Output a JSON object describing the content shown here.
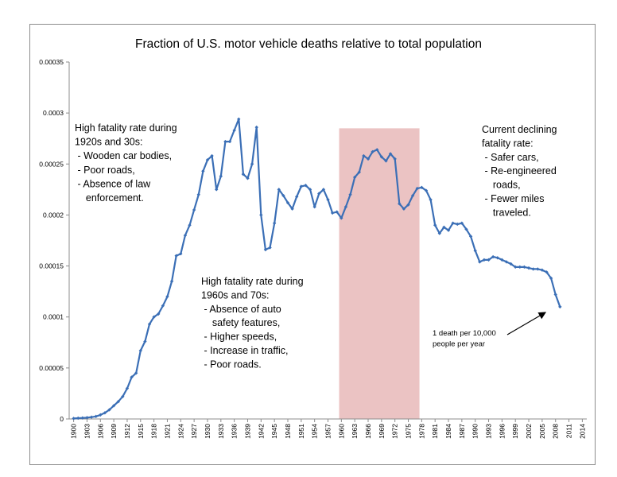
{
  "chart_data": {
    "type": "line",
    "title": "Fraction of U.S. motor vehicle deaths relative to total population",
    "xlabel": "",
    "ylabel": "",
    "xlim": [
      1899,
      2015
    ],
    "ylim": [
      0,
      0.00035
    ],
    "y_ticks": [
      "0",
      "0.00005",
      "0.0001",
      "0.00015",
      "0.0002",
      "0.00025",
      "0.0003",
      "0.00035"
    ],
    "x_ticks": [
      "1900",
      "1903",
      "1906",
      "1909",
      "1912",
      "1915",
      "1918",
      "1921",
      "1924",
      "1927",
      "1930",
      "1933",
      "1936",
      "1939",
      "1942",
      "1945",
      "1948",
      "1951",
      "1954",
      "1957",
      "1960",
      "1963",
      "1966",
      "1969",
      "1972",
      "1975",
      "1978",
      "1981",
      "1984",
      "1987",
      "1990",
      "1993",
      "1996",
      "1999",
      "2002",
      "2005",
      "2008",
      "2011",
      "2014"
    ],
    "grid": false,
    "legend": "none",
    "line_color": "#3b6fb6",
    "highlight": {
      "from": 1959.5,
      "to": 1977.5,
      "color": "#e8b8b8"
    },
    "series": [
      {
        "x": [
          1900,
          1901,
          1902,
          1903,
          1904,
          1905,
          1906,
          1907,
          1908,
          1909,
          1910,
          1911,
          1912,
          1913,
          1914,
          1915,
          1916,
          1917,
          1918,
          1919,
          1920,
          1921,
          1922,
          1923,
          1924,
          1925,
          1926,
          1927,
          1928,
          1929,
          1930,
          1931,
          1932,
          1933,
          1934,
          1935,
          1936,
          1937,
          1938,
          1939,
          1940,
          1941,
          1942,
          1943,
          1944,
          1945,
          1946,
          1947,
          1948,
          1949,
          1950,
          1951,
          1952,
          1953,
          1954,
          1955,
          1956,
          1957,
          1958,
          1959,
          1960,
          1961,
          1962,
          1963,
          1964,
          1965,
          1966,
          1967,
          1968,
          1969,
          1970,
          1971,
          1972,
          1973,
          1974,
          1975,
          1976,
          1977,
          1978,
          1979,
          1980,
          1981,
          1982,
          1983,
          1984,
          1985,
          1986,
          1987,
          1988,
          1989,
          1990,
          1991,
          1992,
          1993,
          1994,
          1995,
          1996,
          1997,
          1998,
          1999,
          2000,
          2001,
          2002,
          2003,
          2004,
          2005,
          2006,
          2007,
          2008,
          2009
        ],
        "values": [
          5e-07,
          8e-07,
          1e-06,
          1.3e-06,
          1.8e-06,
          2.5e-06,
          4e-06,
          6e-06,
          9e-06,
          1.3e-05,
          1.7e-05,
          2.2e-05,
          3e-05,
          4.1e-05,
          4.5e-05,
          6.7e-05,
          7.6e-05,
          9.3e-05,
          0.0001,
          0.000103,
          0.000111,
          0.00012,
          0.000135,
          0.00016,
          0.000162,
          0.00018,
          0.00019,
          0.000205,
          0.00022,
          0.000243,
          0.000254,
          0.000258,
          0.000225,
          0.000238,
          0.000272,
          0.000272,
          0.000283,
          0.000294,
          0.00024,
          0.000236,
          0.00025,
          0.000286,
          0.0002,
          0.000166,
          0.000168,
          0.000192,
          0.000225,
          0.000219,
          0.000212,
          0.000206,
          0.000218,
          0.000228,
          0.000229,
          0.000225,
          0.000208,
          0.000221,
          0.000225,
          0.000215,
          0.000202,
          0.000203,
          0.000197,
          0.000208,
          0.00022,
          0.000237,
          0.000242,
          0.000258,
          0.000255,
          0.000262,
          0.000264,
          0.000257,
          0.000253,
          0.00026,
          0.000255,
          0.000211,
          0.000206,
          0.00021,
          0.000219,
          0.000226,
          0.000227,
          0.000224,
          0.000215,
          0.00019,
          0.000182,
          0.000188,
          0.000185,
          0.000192,
          0.000191,
          0.000192,
          0.000186,
          0.000179,
          0.000165,
          0.000154,
          0.000156,
          0.000156,
          0.000159,
          0.000158,
          0.000156,
          0.000154,
          0.000152,
          0.000149,
          0.000149,
          0.000149,
          0.000148,
          0.000147,
          0.000147,
          0.000146,
          0.000144,
          0.000138,
          0.000122,
          0.00011
        ]
      }
    ],
    "annotations": {
      "early": [
        "High fatality rate during",
        "1920s and 30s:",
        " - Wooden car bodies,",
        " - Poor roads,",
        " - Absence of law",
        "    enforcement."
      ],
      "mid": [
        "High fatality rate during",
        "1960s and 70s:",
        " - Absence of auto",
        "    safety features,",
        " - Higher speeds,",
        " - Increase in traffic,",
        " - Poor roads."
      ],
      "current": [
        "Current declining",
        "fatality rate:",
        " - Safer cars,",
        " - Re-engineered",
        "    roads,",
        " - Fewer miles",
        "    traveled."
      ],
      "arrow_note": [
        "1 death per 10,000",
        "people per year"
      ]
    }
  }
}
